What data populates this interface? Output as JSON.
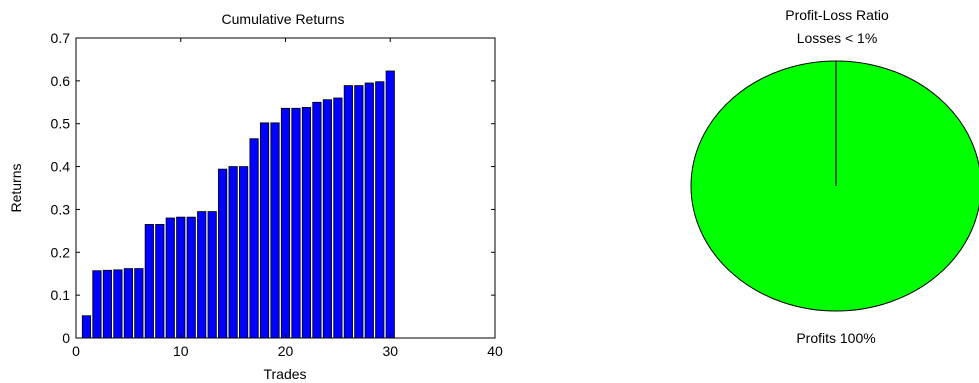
{
  "chart_data": [
    {
      "type": "bar",
      "title": "Cumulative Returns",
      "xlabel": "Trades",
      "ylabel": "Returns",
      "xlim": [
        0,
        40
      ],
      "ylim": [
        0,
        0.7
      ],
      "xticks": [
        0,
        10,
        20,
        30,
        40
      ],
      "yticks": [
        0,
        0.1,
        0.2,
        0.3,
        0.4,
        0.5,
        0.6,
        0.7
      ],
      "grid": false,
      "bar_color": "#0000ff",
      "x": [
        1,
        2,
        3,
        4,
        5,
        6,
        7,
        8,
        9,
        10,
        11,
        12,
        13,
        14,
        15,
        16,
        17,
        18,
        19,
        20,
        21,
        22,
        23,
        24,
        25,
        26,
        27,
        28,
        29,
        30
      ],
      "values": [
        0.052,
        0.157,
        0.158,
        0.159,
        0.162,
        0.162,
        0.265,
        0.265,
        0.28,
        0.282,
        0.282,
        0.295,
        0.295,
        0.394,
        0.4,
        0.4,
        0.465,
        0.502,
        0.502,
        0.536,
        0.536,
        0.538,
        0.55,
        0.556,
        0.56,
        0.589,
        0.589,
        0.595,
        0.598,
        0.623
      ]
    },
    {
      "type": "pie",
      "title": "Profit-Loss Ratio",
      "subtitle": "Losses < 1%",
      "slices": [
        {
          "label": "Profits 100%",
          "value": 100,
          "color": "#00ff00"
        },
        {
          "label": "",
          "value": 0,
          "color": "#ff0000"
        }
      ]
    }
  ]
}
